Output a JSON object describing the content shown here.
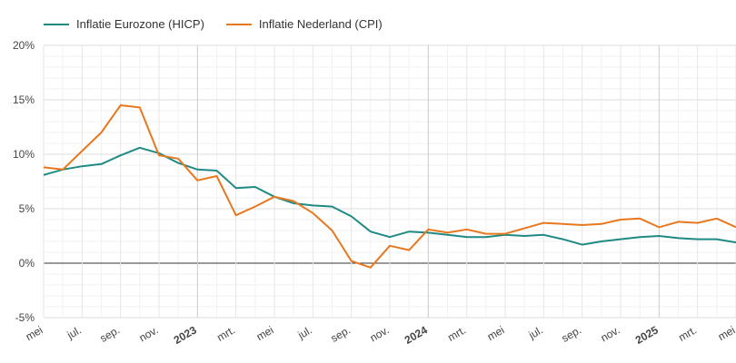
{
  "chart_data": {
    "type": "line",
    "title": "",
    "xlabel": "",
    "ylabel": "",
    "ylim": [
      -5,
      20
    ],
    "y_ticks": [
      -5,
      0,
      5,
      10,
      15,
      20
    ],
    "y_tick_labels": [
      "-5%",
      "0%",
      "5%",
      "10%",
      "15%",
      "20%"
    ],
    "x_tick_labels": [
      {
        "i": 0,
        "label": "mei",
        "bold": false
      },
      {
        "i": 2,
        "label": "jul.",
        "bold": false
      },
      {
        "i": 4,
        "label": "sep.",
        "bold": false
      },
      {
        "i": 6,
        "label": "nov.",
        "bold": false
      },
      {
        "i": 8,
        "label": "2023",
        "bold": true
      },
      {
        "i": 10,
        "label": "mrt.",
        "bold": false
      },
      {
        "i": 12,
        "label": "mei",
        "bold": false
      },
      {
        "i": 14,
        "label": "jul.",
        "bold": false
      },
      {
        "i": 16,
        "label": "sep.",
        "bold": false
      },
      {
        "i": 18,
        "label": "nov.",
        "bold": false
      },
      {
        "i": 20,
        "label": "2024",
        "bold": true
      },
      {
        "i": 22,
        "label": "mrt.",
        "bold": false
      },
      {
        "i": 24,
        "label": "mei",
        "bold": false
      },
      {
        "i": 26,
        "label": "jul.",
        "bold": false
      },
      {
        "i": 28,
        "label": "sep.",
        "bold": false
      },
      {
        "i": 30,
        "label": "nov.",
        "bold": false
      },
      {
        "i": 32,
        "label": "2025",
        "bold": true
      },
      {
        "i": 34,
        "label": "mrt.",
        "bold": false
      },
      {
        "i": 36,
        "label": "mei",
        "bold": false
      }
    ],
    "x": [
      "2022-05",
      "2022-06",
      "2022-07",
      "2022-08",
      "2022-09",
      "2022-10",
      "2022-11",
      "2022-12",
      "2023-01",
      "2023-02",
      "2023-03",
      "2023-04",
      "2023-05",
      "2023-06",
      "2023-07",
      "2023-08",
      "2023-09",
      "2023-10",
      "2023-11",
      "2023-12",
      "2024-01",
      "2024-02",
      "2024-03",
      "2024-04",
      "2024-05",
      "2024-06",
      "2024-07",
      "2024-08",
      "2024-09",
      "2024-10",
      "2024-11",
      "2024-12",
      "2025-01",
      "2025-02",
      "2025-03",
      "2025-04",
      "2025-05"
    ],
    "series": [
      {
        "name": "Inflatie Eurozone (HICP)",
        "color": "#1f8a84",
        "values": [
          8.1,
          8.6,
          8.9,
          9.1,
          9.9,
          10.6,
          10.1,
          9.2,
          8.6,
          8.5,
          6.9,
          7.0,
          6.1,
          5.5,
          5.3,
          5.2,
          4.3,
          2.9,
          2.4,
          2.9,
          2.8,
          2.6,
          2.4,
          2.4,
          2.6,
          2.5,
          2.6,
          2.2,
          1.7,
          2.0,
          2.2,
          2.4,
          2.5,
          2.3,
          2.2,
          2.2,
          1.9
        ]
      },
      {
        "name": "Inflatie Nederland (CPI)",
        "color": "#e8781e",
        "values": [
          8.8,
          8.6,
          10.3,
          12.0,
          14.5,
          14.3,
          9.9,
          9.6,
          7.6,
          8.0,
          4.4,
          5.2,
          6.1,
          5.7,
          4.6,
          3.0,
          0.2,
          -0.4,
          1.6,
          1.2,
          3.1,
          2.8,
          3.1,
          2.7,
          2.7,
          3.2,
          3.7,
          3.6,
          3.5,
          3.6,
          4.0,
          4.1,
          3.3,
          3.8,
          3.7,
          4.1,
          3.3
        ]
      }
    ],
    "grid": true,
    "legend_position": "top-left"
  }
}
